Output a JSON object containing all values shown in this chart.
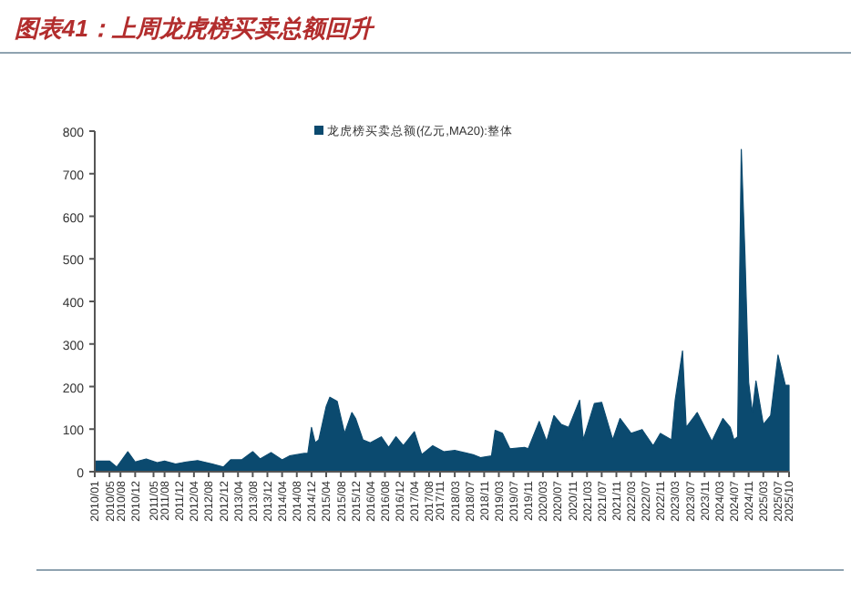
{
  "chart_data": {
    "type": "area",
    "title": "图表41：上周龙虎榜买卖总额回升",
    "x": [
      "2010-01",
      "2010-05",
      "2010-07",
      "2010-10",
      "2010-12",
      "2011-03",
      "2011-06",
      "2011-08",
      "2011-11",
      "2012-02",
      "2012-05",
      "2012-09",
      "2012-12",
      "2013-02",
      "2013-05",
      "2013-08",
      "2013-10",
      "2014-01",
      "2014-04",
      "2014-06",
      "2014-10",
      "2014-11",
      "2014-12",
      "2015-01",
      "2015-02",
      "2015-04",
      "2015-05",
      "2015-07",
      "2015-09",
      "2015-11",
      "2015-12",
      "2016-02",
      "2016-04",
      "2016-07",
      "2016-09",
      "2016-11",
      "2017-01",
      "2017-04",
      "2017-06",
      "2017-09",
      "2017-12",
      "2018-03",
      "2018-08",
      "2018-10",
      "2019-01",
      "2019-02",
      "2019-04",
      "2019-06",
      "2019-10",
      "2019-11",
      "2020-02",
      "2020-04",
      "2020-06",
      "2020-08",
      "2020-10",
      "2021-01",
      "2021-02",
      "2021-05",
      "2021-07",
      "2021-10",
      "2021-12",
      "2022-03",
      "2022-06",
      "2022-09",
      "2022-11",
      "2023-02",
      "2023-03",
      "2023-05",
      "2023-06",
      "2023-09",
      "2024-01",
      "2024-04",
      "2024-06",
      "2024-07",
      "2024-08",
      "2024-09",
      "2024-10",
      "2024-11",
      "2024-12",
      "2025-01",
      "2025-03",
      "2025-05",
      "2025-07",
      "2025-09",
      "2025-10"
    ],
    "series": [
      {
        "name": "龙虎榜买卖总额(亿元,MA20):整体",
        "color": "#0b4a6f",
        "values": [
          25,
          25,
          11,
          47,
          23,
          30,
          21,
          25,
          18,
          23,
          26,
          18,
          11,
          28,
          28,
          47,
          30,
          45,
          28,
          37,
          43,
          43,
          104,
          68,
          75,
          153,
          175,
          165,
          90,
          139,
          125,
          75,
          68,
          82,
          57,
          82,
          61,
          94,
          40,
          61,
          47,
          50,
          40,
          33,
          37,
          97,
          90,
          54,
          57,
          54,
          118,
          71,
          132,
          111,
          104,
          168,
          75,
          160,
          163,
          75,
          125,
          90,
          99,
          61,
          90,
          75,
          168,
          284,
          104,
          139,
          71,
          125,
          104,
          75,
          82,
          757,
          509,
          210,
          139,
          213,
          111,
          132,
          274,
          203,
          203
        ]
      }
    ],
    "xlim": [
      "2010-01",
      "2025-10"
    ],
    "xticks": [
      {
        "value": "2010-01",
        "label": "2010/01"
      },
      {
        "value": "2010-05",
        "label": "2010/05"
      },
      {
        "value": "2010-08",
        "label": "2010/08"
      },
      {
        "value": "2010-12",
        "label": "2010/12"
      },
      {
        "value": "2011-05",
        "label": "2011/05"
      },
      {
        "value": "2011-08",
        "label": "2011/08"
      },
      {
        "value": "2011-12",
        "label": "2011/12"
      },
      {
        "value": "2012-04",
        "label": "2012/04"
      },
      {
        "value": "2012-08",
        "label": "2012/08"
      },
      {
        "value": "2012-12",
        "label": "2012/12"
      },
      {
        "value": "2013-04",
        "label": "2013/04"
      },
      {
        "value": "2013-08",
        "label": "2013/08"
      },
      {
        "value": "2013-12",
        "label": "2013/12"
      },
      {
        "value": "2014-04",
        "label": "2014/04"
      },
      {
        "value": "2014-08",
        "label": "2014/08"
      },
      {
        "value": "2014-12",
        "label": "2014/12"
      },
      {
        "value": "2015-04",
        "label": "2015/04"
      },
      {
        "value": "2015-08",
        "label": "2015/08"
      },
      {
        "value": "2015-12",
        "label": "2015/12"
      },
      {
        "value": "2016-04",
        "label": "2016/04"
      },
      {
        "value": "2016-08",
        "label": "2016/08"
      },
      {
        "value": "2016-12",
        "label": "2016/12"
      },
      {
        "value": "2017-04",
        "label": "2017/04"
      },
      {
        "value": "2017-08",
        "label": "2017/08"
      },
      {
        "value": "2017-11",
        "label": "2017/11"
      },
      {
        "value": "2018-03",
        "label": "2018/03"
      },
      {
        "value": "2018-07",
        "label": "2018/07"
      },
      {
        "value": "2018-11",
        "label": "2018/11"
      },
      {
        "value": "2019-03",
        "label": "2019/03"
      },
      {
        "value": "2019-07",
        "label": "2019/07"
      },
      {
        "value": "2019-11",
        "label": "2019/11"
      },
      {
        "value": "2020-03",
        "label": "2020/03"
      },
      {
        "value": "2020-07",
        "label": "2020/07"
      },
      {
        "value": "2020-11",
        "label": "2020/11"
      },
      {
        "value": "2021-03",
        "label": "2021/03"
      },
      {
        "value": "2021-07",
        "label": "2021/07"
      },
      {
        "value": "2021-11",
        "label": "2021/11"
      },
      {
        "value": "2022-03",
        "label": "2022/03"
      },
      {
        "value": "2022-07",
        "label": "2022/07"
      },
      {
        "value": "2022-11",
        "label": "2022/11"
      },
      {
        "value": "2023-03",
        "label": "2023/03"
      },
      {
        "value": "2023-07",
        "label": "2023/07"
      },
      {
        "value": "2023-11",
        "label": "2023/11"
      },
      {
        "value": "2024-03",
        "label": "2024/03"
      },
      {
        "value": "2024-07",
        "label": "2024/07"
      },
      {
        "value": "2024-11",
        "label": "2024/11"
      },
      {
        "value": "2025-03",
        "label": "2025/03"
      },
      {
        "value": "2025-07",
        "label": "2025/07"
      },
      {
        "value": "2025-10",
        "label": "2025/10"
      }
    ],
    "ylim": [
      0,
      800
    ],
    "yticks": [
      0,
      100,
      200,
      300,
      400,
      500,
      600,
      700,
      800
    ],
    "legend": "top"
  }
}
